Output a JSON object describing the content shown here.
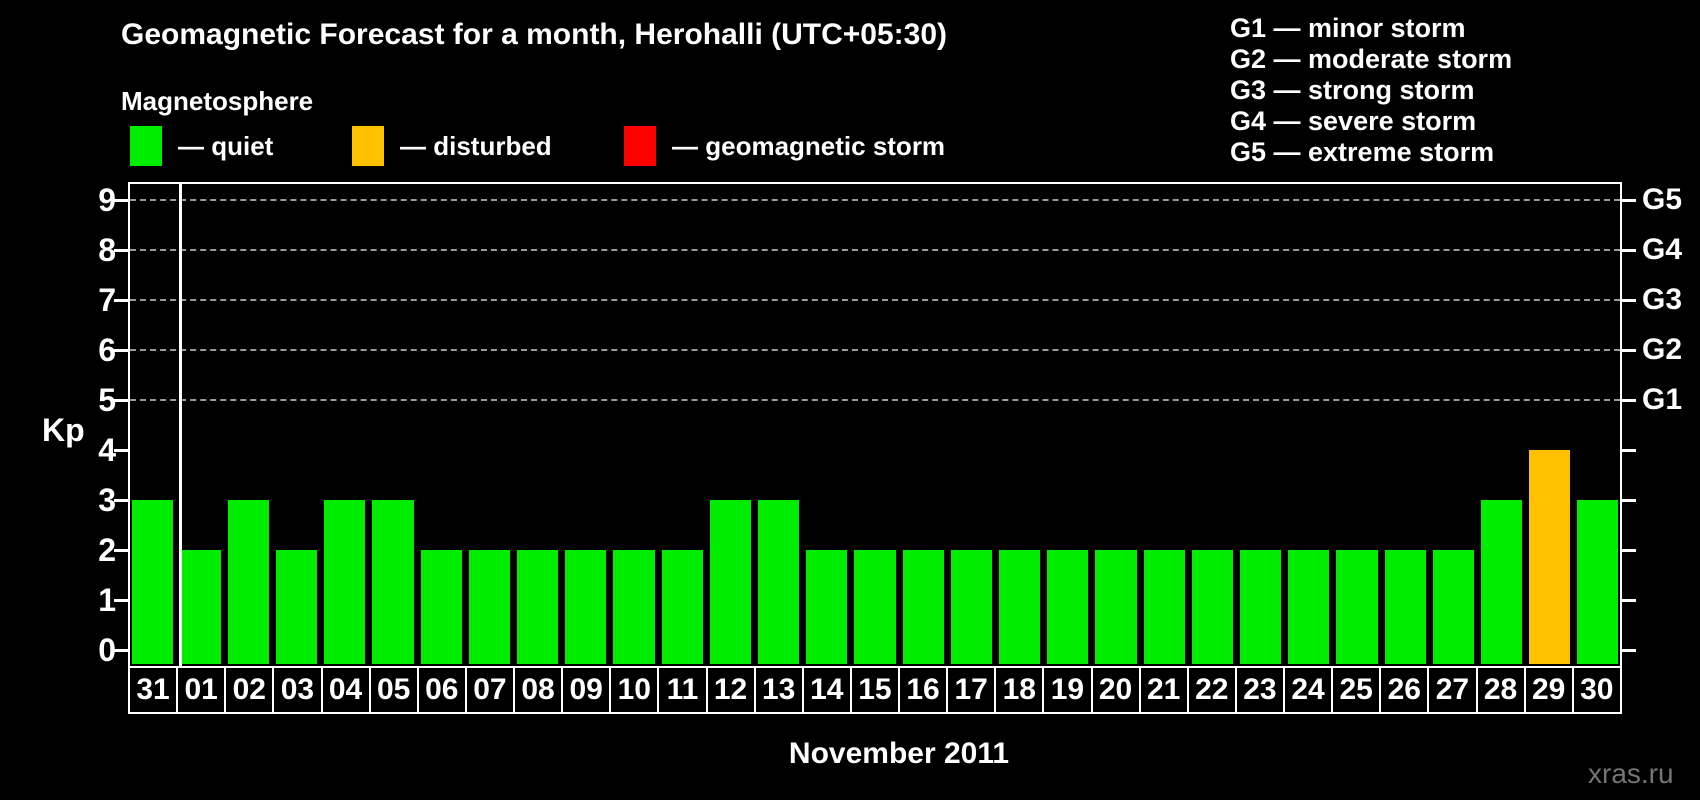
{
  "header": {
    "legend_heading": "Magnetosphere",
    "legend_items": [
      {
        "status": "quiet",
        "label": "— quiet",
        "color": "#00ed00"
      },
      {
        "status": "disturbed",
        "label": "— disturbed",
        "color": "#ffc000"
      },
      {
        "status": "storm",
        "label": "— geomagnetic storm",
        "color": "#ff0000"
      }
    ],
    "storm_scale_legend": [
      {
        "label": "G1 — minor storm"
      },
      {
        "label": "G2 — moderate storm"
      },
      {
        "label": "G3 — strong storm"
      },
      {
        "label": "G4 — severe storm"
      },
      {
        "label": "G5 — extreme storm"
      }
    ]
  },
  "footer": {
    "watermark": "xras.ru"
  },
  "chart_data": {
    "type": "bar",
    "title": "Geomagnetic Forecast for a month, Herohalli (UTC+05:30)",
    "xlabel": "November 2011",
    "ylabel": "Kp",
    "ylim": [
      0,
      9
    ],
    "yticks": [
      0,
      1,
      2,
      3,
      4,
      5,
      6,
      7,
      8,
      9
    ],
    "grid_levels": [
      5,
      6,
      7,
      8,
      9
    ],
    "grid_style": "horizontal dashed gray at Kp 5-9 only",
    "right_axis_ticks": [
      {
        "kp": 5,
        "label": "G1"
      },
      {
        "kp": 6,
        "label": "G2"
      },
      {
        "kp": 7,
        "label": "G3"
      },
      {
        "kp": 8,
        "label": "G4"
      },
      {
        "kp": 9,
        "label": "G5"
      }
    ],
    "legend_position": "top-left",
    "categories": [
      "31",
      "01",
      "02",
      "03",
      "04",
      "05",
      "06",
      "07",
      "08",
      "09",
      "10",
      "11",
      "12",
      "13",
      "14",
      "15",
      "16",
      "17",
      "18",
      "19",
      "20",
      "21",
      "22",
      "23",
      "24",
      "25",
      "26",
      "27",
      "28",
      "29",
      "30"
    ],
    "values": [
      3,
      2,
      3,
      2,
      3,
      3,
      2,
      2,
      2,
      2,
      2,
      2,
      3,
      3,
      2,
      2,
      2,
      2,
      2,
      2,
      2,
      2,
      2,
      2,
      2,
      2,
      2,
      2,
      3,
      4,
      3
    ],
    "statuses": [
      "quiet",
      "quiet",
      "quiet",
      "quiet",
      "quiet",
      "quiet",
      "quiet",
      "quiet",
      "quiet",
      "quiet",
      "quiet",
      "quiet",
      "quiet",
      "quiet",
      "quiet",
      "quiet",
      "quiet",
      "quiet",
      "quiet",
      "quiet",
      "quiet",
      "quiet",
      "quiet",
      "quiet",
      "quiet",
      "quiet",
      "quiet",
      "quiet",
      "quiet",
      "disturbed",
      "quiet"
    ],
    "status_colors": {
      "quiet": "#00ed00",
      "disturbed": "#ffc000",
      "storm": "#ff0000"
    },
    "month_separator_after_index": 0,
    "background_color": "#000000",
    "axis_color": "#ffffff"
  }
}
